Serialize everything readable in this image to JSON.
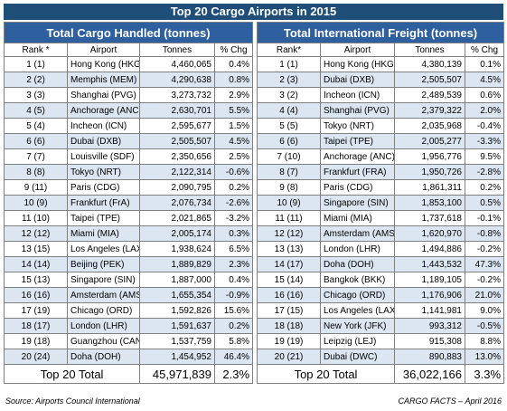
{
  "title": "Top 20 Cargo Airports in 2015",
  "tables": [
    {
      "heading": "Total Cargo Handled (tonnes)",
      "columns": [
        "Rank *",
        "Airport",
        "Tonnes",
        "% Chg"
      ],
      "rows": [
        [
          "1 (1)",
          "Hong Kong (HKG)",
          "4,460,065",
          "0.4%"
        ],
        [
          "2 (2)",
          "Memphis (MEM)",
          "4,290,638",
          "0.8%"
        ],
        [
          "3 (3)",
          "Shanghai (PVG)",
          "3,273,732",
          "2.9%"
        ],
        [
          "4 (5)",
          "Anchorage (ANC)",
          "2,630,701",
          "5.5%"
        ],
        [
          "5 (4)",
          "Incheon (ICN)",
          "2,595,677",
          "1.5%"
        ],
        [
          "6 (6)",
          "Dubai (DXB)",
          "2,505,507",
          "4.5%"
        ],
        [
          "7 (7)",
          "Louisville (SDF)",
          "2,350,656",
          "2.5%"
        ],
        [
          "8 (8)",
          "Tokyo (NRT)",
          "2,122,314",
          "-0.6%"
        ],
        [
          "9 (11)",
          "Paris (CDG)",
          "2,090,795",
          "0.2%"
        ],
        [
          "10 (9)",
          "Frankfurt (FrA)",
          "2,076,734",
          "-2.6%"
        ],
        [
          "11 (10)",
          "Taipei (TPE)",
          "2,021,865",
          "-3.2%"
        ],
        [
          "12 (12)",
          "Miami (MIA)",
          "2,005,174",
          "0.3%"
        ],
        [
          "13 (15)",
          "Los Angeles (LAX)",
          "1,938,624",
          "6.5%"
        ],
        [
          "14 (14)",
          "Beijing (PEK)",
          "1,889,829",
          "2.3%"
        ],
        [
          "15 (13)",
          "Singapore (SIN)",
          "1,887,000",
          "0.4%"
        ],
        [
          "16 (16)",
          "Amsterdam (AMS)",
          "1,655,354",
          "-0.9%"
        ],
        [
          "17 (19)",
          "Chicago (ORD)",
          "1,592,826",
          "15.6%"
        ],
        [
          "18 (17)",
          "London (LHR)",
          "1,591,637",
          "0.2%"
        ],
        [
          "19 (18)",
          "Guangzhou (CAN)",
          "1,537,759",
          "5.8%"
        ],
        [
          "20 (24)",
          "Doha (DOH)",
          "1,454,952",
          "46.4%"
        ]
      ],
      "total": [
        "Top 20 Total",
        "45,971,839",
        "2.3%"
      ]
    },
    {
      "heading": "Total International Freight (tonnes)",
      "columns": [
        "Rank*",
        "Airport",
        "Tonnes",
        "% Chg"
      ],
      "rows": [
        [
          "1 (1)",
          "Hong Kong (HKG)",
          "4,380,139",
          "0.1%"
        ],
        [
          "2 (3)",
          "Dubai (DXB)",
          "2,505,507",
          "4.5%"
        ],
        [
          "3 (2)",
          "Incheon (ICN)",
          "2,489,539",
          "0.6%"
        ],
        [
          "4 (4)",
          "Shanghai (PVG)",
          "2,379,322",
          "2.0%"
        ],
        [
          "5 (5)",
          "Tokyo (NRT)",
          "2,035,968",
          "-0.4%"
        ],
        [
          "6 (6)",
          "Taipei (TPE)",
          "2,005,277",
          "-3.3%"
        ],
        [
          "7 (10)",
          "Anchorage (ANC)",
          "1,956,776",
          "9.5%"
        ],
        [
          "8 (7)",
          "Frankfurt (FRA)",
          "1,950,726",
          "-2.8%"
        ],
        [
          "9 (8)",
          "Paris (CDG)",
          "1,861,311",
          "0.2%"
        ],
        [
          "10 (9)",
          "Singapore (SIN)",
          "1,853,100",
          "0.5%"
        ],
        [
          "11 (11)",
          "Miami (MIA)",
          "1,737,618",
          "-0.1%"
        ],
        [
          "12 (12)",
          "Amsterdam (AMS)",
          "1,620,970",
          "-0.8%"
        ],
        [
          "13 (13)",
          "London (LHR)",
          "1,494,886",
          "-0.2%"
        ],
        [
          "14 (17)",
          "Doha (DOH)",
          "1,443,532",
          "47.3%"
        ],
        [
          "15 (14)",
          "Bangkok (BKK)",
          "1,189,105",
          "-0.2%"
        ],
        [
          "16 (16)",
          "Chicago (ORD)",
          "1,176,906",
          "21.0%"
        ],
        [
          "17 (15)",
          "Los Angeles (LAX)",
          "1,141,981",
          "9.0%"
        ],
        [
          "18 (18)",
          "New York (JFK)",
          "993,312",
          "-0.5%"
        ],
        [
          "19 (19)",
          "Leipzig (LEJ)",
          "915,308",
          "8.8%"
        ],
        [
          "20 (21)",
          "Dubai (DWC)",
          "890,883",
          "13.0%"
        ]
      ],
      "total": [
        "Top 20 Total",
        "36,022,166",
        "3.3%"
      ]
    }
  ],
  "footer": {
    "source": "Source: Airports Council International",
    "credit": "CARGO FACTS – April 2016"
  }
}
